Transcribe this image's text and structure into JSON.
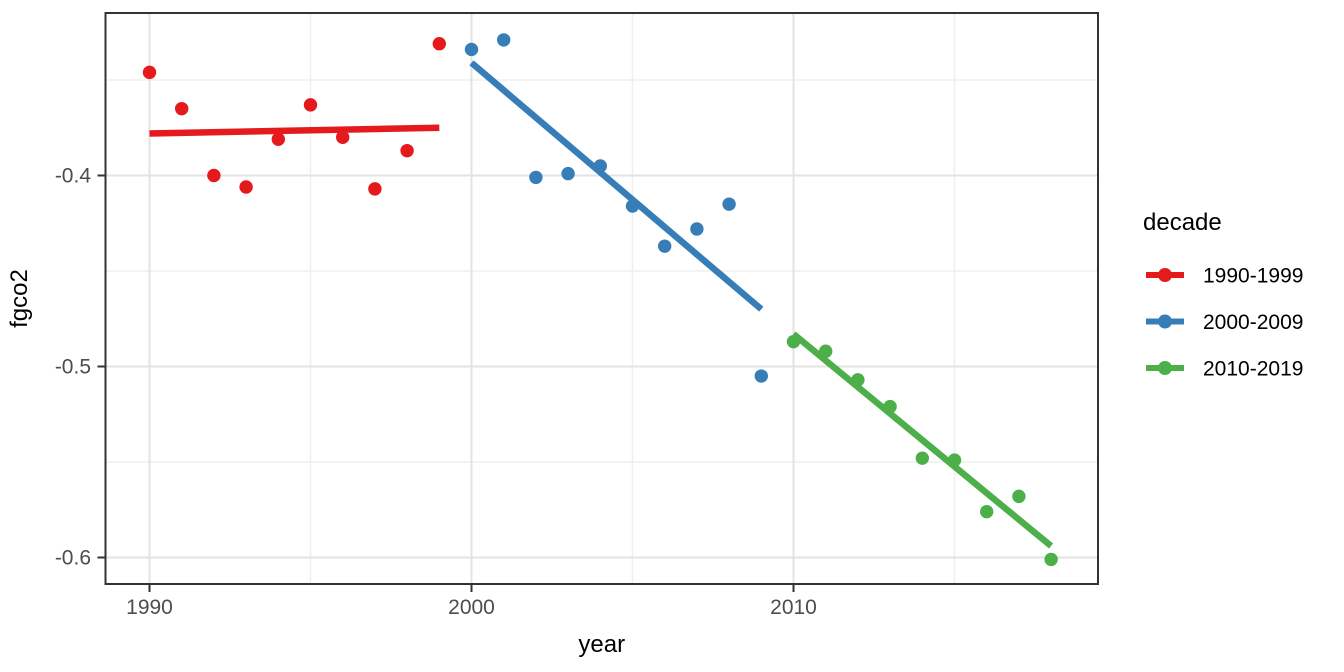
{
  "chart_data": {
    "type": "scatter",
    "title": "",
    "xlabel": "year",
    "ylabel": "fgco2",
    "x_ticks": [
      1990,
      2000,
      2010
    ],
    "x_tick_labels": [
      "1990",
      "2000",
      "2010"
    ],
    "x_minor_ticks": [
      1995,
      2005,
      2015
    ],
    "y_ticks": [
      -0.4,
      -0.5,
      -0.6
    ],
    "y_tick_labels": [
      "-0.4",
      "-0.5",
      "-0.6"
    ],
    "y_minor_ticks": [
      -0.35,
      -0.45,
      -0.55
    ],
    "xlim": [
      1988.6,
      2019.5
    ],
    "ylim": [
      -0.614,
      -0.315
    ],
    "grid": true,
    "legend": {
      "title": "decade",
      "position": "right"
    },
    "series": [
      {
        "name": "1990-1999",
        "color": "#E41A1C",
        "x": [
          1990,
          1991,
          1992,
          1993,
          1994,
          1995,
          1996,
          1997,
          1998,
          1999
        ],
        "y": [
          -0.346,
          -0.365,
          -0.4,
          -0.406,
          -0.381,
          -0.363,
          -0.38,
          -0.407,
          -0.387,
          -0.331
        ],
        "trend": {
          "x": [
            1990,
            1999
          ],
          "y": [
            -0.378,
            -0.375
          ]
        }
      },
      {
        "name": "2000-2009",
        "color": "#377EB8",
        "x": [
          2000,
          2001,
          2002,
          2003,
          2004,
          2005,
          2006,
          2007,
          2008,
          2009
        ],
        "y": [
          -0.334,
          -0.329,
          -0.401,
          -0.399,
          -0.395,
          -0.416,
          -0.437,
          -0.428,
          -0.415,
          -0.505
        ],
        "trend": {
          "x": [
            2000,
            2009
          ],
          "y": [
            -0.341,
            -0.47
          ]
        }
      },
      {
        "name": "2010-2019",
        "color": "#4DAF4A",
        "x": [
          2010,
          2011,
          2012,
          2013,
          2014,
          2015,
          2016,
          2017,
          2018
        ],
        "y": [
          -0.487,
          -0.492,
          -0.507,
          -0.521,
          -0.548,
          -0.549,
          -0.576,
          -0.568,
          -0.601
        ],
        "trend": {
          "x": [
            2010,
            2018
          ],
          "y": [
            -0.483,
            -0.594
          ]
        }
      }
    ],
    "colors": {
      "background": "#FFFFFF",
      "panel_border": "#333333",
      "grid_major": "#E3E3E3",
      "grid_minor": "#EFEFEF",
      "tick_mark": "#333333",
      "tick_label": "#4D4D4D",
      "text": "#000000"
    }
  }
}
